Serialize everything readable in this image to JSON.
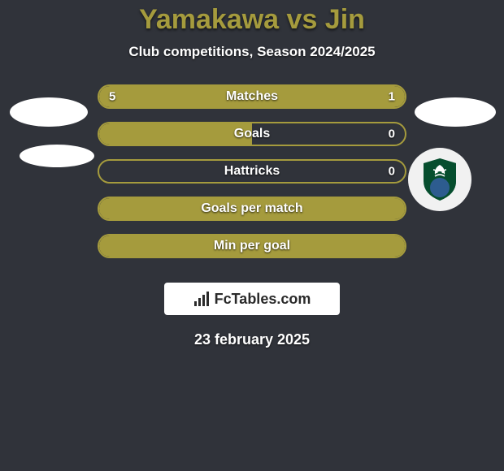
{
  "background_color": "#30333a",
  "title": {
    "text": "Yamakawa vs Jin",
    "color": "#a59b3d",
    "fontsize": 34
  },
  "subtitle": {
    "text": "Club competitions, Season 2024/2025",
    "color": "#ffffff",
    "fontsize": 17
  },
  "bars": [
    {
      "label": "Matches",
      "left_value": "5",
      "right_value": "1",
      "fill_color": "#a59b3d",
      "border_color": "#a59b3d",
      "left_pct": 79,
      "right_pct": 21
    },
    {
      "label": "Goals",
      "left_value": "",
      "right_value": "0",
      "fill_color": "#a59b3d",
      "border_color": "#a59b3d",
      "left_pct": 50,
      "right_pct": 0
    },
    {
      "label": "Hattricks",
      "left_value": "",
      "right_value": "0",
      "fill_color": "#a59b3d",
      "border_color": "#a59b3d",
      "left_pct": 0,
      "right_pct": 0
    },
    {
      "label": "Goals per match",
      "left_value": "",
      "right_value": "",
      "fill_color": "#a59b3d",
      "border_color": "#a59b3d",
      "left_pct": 100,
      "right_pct": 0
    },
    {
      "label": "Min per goal",
      "left_value": "",
      "right_value": "",
      "fill_color": "#a59b3d",
      "border_color": "#a59b3d",
      "left_pct": 100,
      "right_pct": 0
    }
  ],
  "badge": {
    "text": "FcTables.com",
    "background": "#ffffff"
  },
  "date": {
    "text": "23 february 2025",
    "color": "#ffffff"
  },
  "crest": {
    "inner_green": "#064e2e",
    "inner_blue": "#2d5c8f",
    "palm_white": "#ffffff"
  }
}
